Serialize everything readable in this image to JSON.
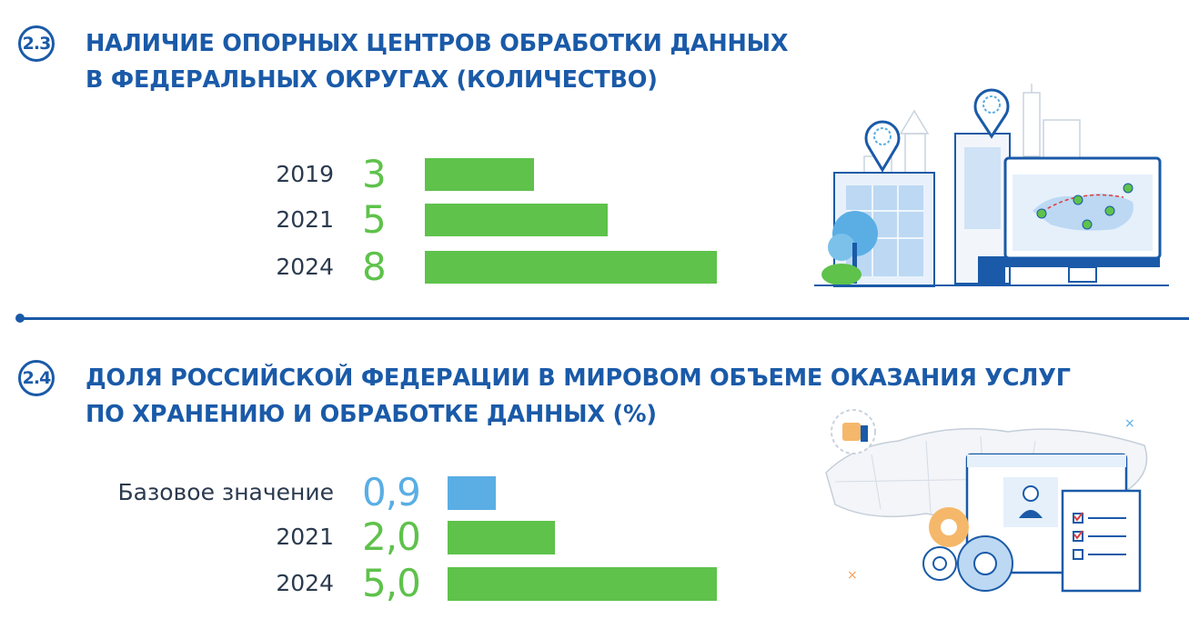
{
  "colors": {
    "title": "#1a5aa8",
    "label": "#2b3a4e",
    "green": "#5ec24b",
    "blue": "#5aaee4"
  },
  "chart_data": [
    {
      "type": "bar",
      "badge": "2.3",
      "title_line1": "НАЛИЧИЕ ОПОРНЫХ ЦЕНТРОВ ОБРАБОТКИ ДАННЫХ",
      "title_line2": "В ФЕДЕРАЛЬНЫХ ОКРУГАХ (КОЛИЧЕСТВО)",
      "categories": [
        "2019",
        "2021",
        "2024"
      ],
      "values": [
        3,
        5,
        8
      ],
      "value_labels": [
        "3",
        "5",
        "8"
      ],
      "bar_colors": [
        "green",
        "green",
        "green"
      ],
      "xlim": [
        0,
        8
      ]
    },
    {
      "type": "bar",
      "badge": "2.4",
      "title_line1": "ДОЛЯ РОССИЙСКОЙ ФЕДЕРАЦИИ В МИРОВОМ ОБЪЕМЕ ОКАЗАНИЯ УСЛУГ",
      "title_line2": "ПО ХРАНЕНИЮ И ОБРАБОТКЕ ДАННЫХ (%)",
      "categories": [
        "Базовое значение",
        "2021",
        "2024"
      ],
      "values": [
        0.9,
        2.0,
        5.0
      ],
      "value_labels": [
        "0,9",
        "2,0",
        "5,0"
      ],
      "bar_colors": [
        "blue",
        "green",
        "green"
      ],
      "xlim": [
        0,
        5
      ]
    }
  ],
  "illustrations": {
    "top": "city-data-center-illustration",
    "bottom": "russia-map-services-illustration"
  }
}
